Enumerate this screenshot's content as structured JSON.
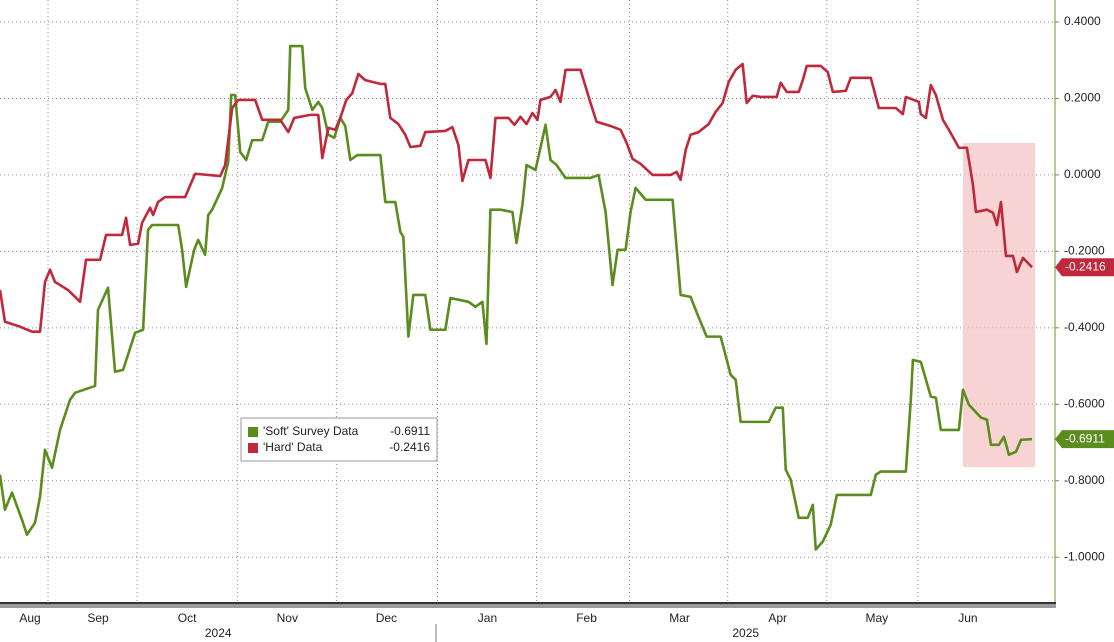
{
  "chart_data": {
    "type": "line",
    "xlim": [
      0.354,
      11.0
    ],
    "ylim": [
      -1.125,
      0.4575
    ],
    "grid": true,
    "yticks": [
      {
        "value": 0.4,
        "label": "0.4000"
      },
      {
        "value": 0.2,
        "label": "0.2000"
      },
      {
        "value": 0,
        "label": "0.0000"
      },
      {
        "value": -0.2,
        "label": "-0.2000"
      },
      {
        "value": -0.4,
        "label": "-0.4000"
      },
      {
        "value": -0.6,
        "label": "-0.6000"
      },
      {
        "value": -0.8,
        "label": "-0.8000"
      },
      {
        "value": -1.0,
        "label": "-1.0000"
      }
    ],
    "xticks": [
      {
        "value": 0.657,
        "label": "Aug"
      },
      {
        "value": 1.343,
        "label": "Sep"
      },
      {
        "value": 2.242,
        "label": "Oct"
      },
      {
        "value": 3.253,
        "label": "Nov"
      },
      {
        "value": 4.253,
        "label": "Dec"
      },
      {
        "value": 5.273,
        "label": "Jan"
      },
      {
        "value": 6.273,
        "label": "Feb"
      },
      {
        "value": 7.212,
        "label": "Mar"
      },
      {
        "value": 8.202,
        "label": "Apr"
      },
      {
        "value": 9.202,
        "label": "May"
      },
      {
        "value": 10.121,
        "label": "Jun"
      }
    ],
    "year_labels": [
      {
        "value": 2.556,
        "label": "2024"
      },
      {
        "value": 7.879,
        "label": "2025"
      }
    ],
    "series": [
      {
        "name": "'Soft' Survey Data",
        "color": "#5b8c1e",
        "last_value": -0.6911,
        "x": [
          0.354,
          0.404,
          0.475,
          0.576,
          0.626,
          0.707,
          0.758,
          0.808,
          0.879,
          0.96,
          1.061,
          1.111,
          1.313,
          1.343,
          1.444,
          1.515,
          1.596,
          1.717,
          1.798,
          1.848,
          1.889,
          2.152,
          2.192,
          2.232,
          2.313,
          2.354,
          2.424,
          2.455,
          2.495,
          2.596,
          2.657,
          2.687,
          2.727,
          2.778,
          2.838,
          2.899,
          3.0,
          3.061,
          3.182,
          3.263,
          3.283,
          3.404,
          3.434,
          3.505,
          3.566,
          3.606,
          3.667,
          3.727,
          3.788,
          3.838,
          3.889,
          3.96,
          4.192,
          4.242,
          4.343,
          4.394,
          4.424,
          4.475,
          4.525,
          4.646,
          4.697,
          4.848,
          4.899,
          5.081,
          5.152,
          5.222,
          5.263,
          5.303,
          5.404,
          5.525,
          5.566,
          5.626,
          5.667,
          5.758,
          5.859,
          5.909,
          5.97,
          6.061,
          6.313,
          6.394,
          6.465,
          6.535,
          6.586,
          6.667,
          6.717,
          6.768,
          6.869,
          7.141,
          7.222,
          7.323,
          7.394,
          7.485,
          7.626,
          7.727,
          7.778,
          7.828,
          8.111,
          8.182,
          8.253,
          8.283,
          8.333,
          8.414,
          8.505,
          8.556,
          8.586,
          8.657,
          8.737,
          8.798,
          9.141,
          9.192,
          9.242,
          9.495,
          9.545,
          9.566,
          9.646,
          9.747,
          9.798,
          9.848,
          10.03,
          10.071,
          10.131,
          10.253,
          10.313,
          10.354,
          10.434,
          10.485,
          10.535,
          10.606,
          10.657,
          10.768
        ],
        "values": [
          -0.784,
          -0.876,
          -0.831,
          -0.902,
          -0.941,
          -0.91,
          -0.842,
          -0.719,
          -0.766,
          -0.667,
          -0.588,
          -0.57,
          -0.552,
          -0.353,
          -0.295,
          -0.515,
          -0.51,
          -0.413,
          -0.405,
          -0.144,
          -0.131,
          -0.131,
          -0.196,
          -0.293,
          -0.196,
          -0.17,
          -0.209,
          -0.105,
          -0.091,
          -0.034,
          0.034,
          0.209,
          0.209,
          0.06,
          0.039,
          0.091,
          0.091,
          0.139,
          0.139,
          0.17,
          0.337,
          0.337,
          0.227,
          0.17,
          0.191,
          0.175,
          0.105,
          0.097,
          0.149,
          0.128,
          0.039,
          0.052,
          0.052,
          -0.071,
          -0.071,
          -0.149,
          -0.162,
          -0.423,
          -0.314,
          -0.314,
          -0.405,
          -0.405,
          -0.322,
          -0.332,
          -0.345,
          -0.332,
          -0.442,
          -0.091,
          -0.091,
          -0.097,
          -0.178,
          -0.078,
          0.026,
          0.013,
          0.131,
          0.039,
          0.026,
          -0.008,
          -0.008,
          0,
          -0.097,
          -0.288,
          -0.196,
          -0.196,
          -0.097,
          -0.034,
          -0.065,
          -0.065,
          -0.314,
          -0.319,
          -0.366,
          -0.423,
          -0.423,
          -0.523,
          -0.536,
          -0.646,
          -0.646,
          -0.609,
          -0.609,
          -0.771,
          -0.797,
          -0.897,
          -0.897,
          -0.863,
          -0.98,
          -0.959,
          -0.915,
          -0.837,
          -0.837,
          -0.784,
          -0.776,
          -0.776,
          -0.588,
          -0.484,
          -0.489,
          -0.58,
          -0.583,
          -0.667,
          -0.667,
          -0.562,
          -0.601,
          -0.635,
          -0.64,
          -0.706,
          -0.706,
          -0.685,
          -0.732,
          -0.724,
          -0.693,
          -0.6911
        ]
      },
      {
        "name": "'Hard' Data",
        "color": "#c0283c",
        "last_value": -0.2416,
        "x": [
          0.354,
          0.404,
          0.556,
          0.677,
          0.758,
          0.808,
          0.859,
          0.909,
          1.04,
          1.162,
          1.222,
          1.364,
          1.424,
          1.586,
          1.626,
          1.667,
          1.747,
          1.788,
          1.869,
          1.899,
          1.949,
          2.02,
          2.222,
          2.323,
          2.576,
          2.626,
          2.697,
          2.758,
          2.929,
          3.0,
          3.182,
          3.263,
          3.323,
          3.485,
          3.566,
          3.606,
          3.667,
          3.737,
          3.788,
          3.848,
          3.909,
          3.97,
          4.04,
          4.192,
          4.242,
          4.293,
          4.374,
          4.444,
          4.495,
          4.596,
          4.646,
          4.848,
          4.919,
          4.98,
          5.02,
          5.081,
          5.253,
          5.303,
          5.354,
          5.485,
          5.545,
          5.606,
          5.667,
          5.727,
          5.778,
          5.808,
          5.909,
          5.96,
          6.01,
          6.061,
          6.212,
          6.313,
          6.374,
          6.515,
          6.616,
          6.677,
          6.737,
          6.818,
          6.939,
          7.121,
          7.182,
          7.222,
          7.273,
          7.323,
          7.404,
          7.505,
          7.576,
          7.646,
          7.707,
          7.778,
          7.848,
          7.889,
          7.949,
          8.03,
          8.192,
          8.232,
          8.293,
          8.414,
          8.455,
          8.495,
          8.636,
          8.707,
          8.758,
          8.889,
          8.939,
          9.141,
          9.222,
          9.394,
          9.465,
          9.495,
          9.626,
          9.646,
          9.697,
          9.747,
          9.798,
          9.869,
          9.929,
          10.03,
          10.111,
          10.172,
          10.202,
          10.313,
          10.374,
          10.414,
          10.455,
          10.505,
          10.576,
          10.616,
          10.677,
          10.768
        ],
        "values": [
          -0.301,
          -0.384,
          -0.397,
          -0.41,
          -0.41,
          -0.28,
          -0.248,
          -0.28,
          -0.301,
          -0.332,
          -0.222,
          -0.222,
          -0.157,
          -0.157,
          -0.112,
          -0.183,
          -0.18,
          -0.125,
          -0.086,
          -0.105,
          -0.071,
          -0.058,
          -0.058,
          0.003,
          -0.003,
          0.026,
          0.175,
          0.196,
          0.196,
          0.144,
          0.144,
          0.112,
          0.149,
          0.157,
          0.157,
          0.044,
          0.123,
          0.118,
          0.149,
          0.196,
          0.214,
          0.264,
          0.248,
          0.238,
          0.238,
          0.149,
          0.133,
          0.105,
          0.073,
          0.076,
          0.112,
          0.115,
          0.125,
          0.078,
          -0.016,
          0.039,
          0.039,
          -0.008,
          0.149,
          0.149,
          0.131,
          0.152,
          0.133,
          0.162,
          0.144,
          0.196,
          0.204,
          0.222,
          0.191,
          0.275,
          0.275,
          0.188,
          0.139,
          0.128,
          0.118,
          0.084,
          0.042,
          0.029,
          0,
          0,
          0.008,
          -0.013,
          0.065,
          0.105,
          0.112,
          0.133,
          0.165,
          0.188,
          0.243,
          0.275,
          0.29,
          0.188,
          0.207,
          0.204,
          0.204,
          0.241,
          0.217,
          0.217,
          0.248,
          0.285,
          0.285,
          0.269,
          0.217,
          0.22,
          0.254,
          0.254,
          0.175,
          0.175,
          0.159,
          0.204,
          0.191,
          0.159,
          0.149,
          0.235,
          0.209,
          0.144,
          0.118,
          0.071,
          0.071,
          -0.026,
          -0.097,
          -0.091,
          -0.099,
          -0.131,
          -0.071,
          -0.212,
          -0.212,
          -0.254,
          -0.217,
          -0.2416
        ]
      }
    ]
  }
}
